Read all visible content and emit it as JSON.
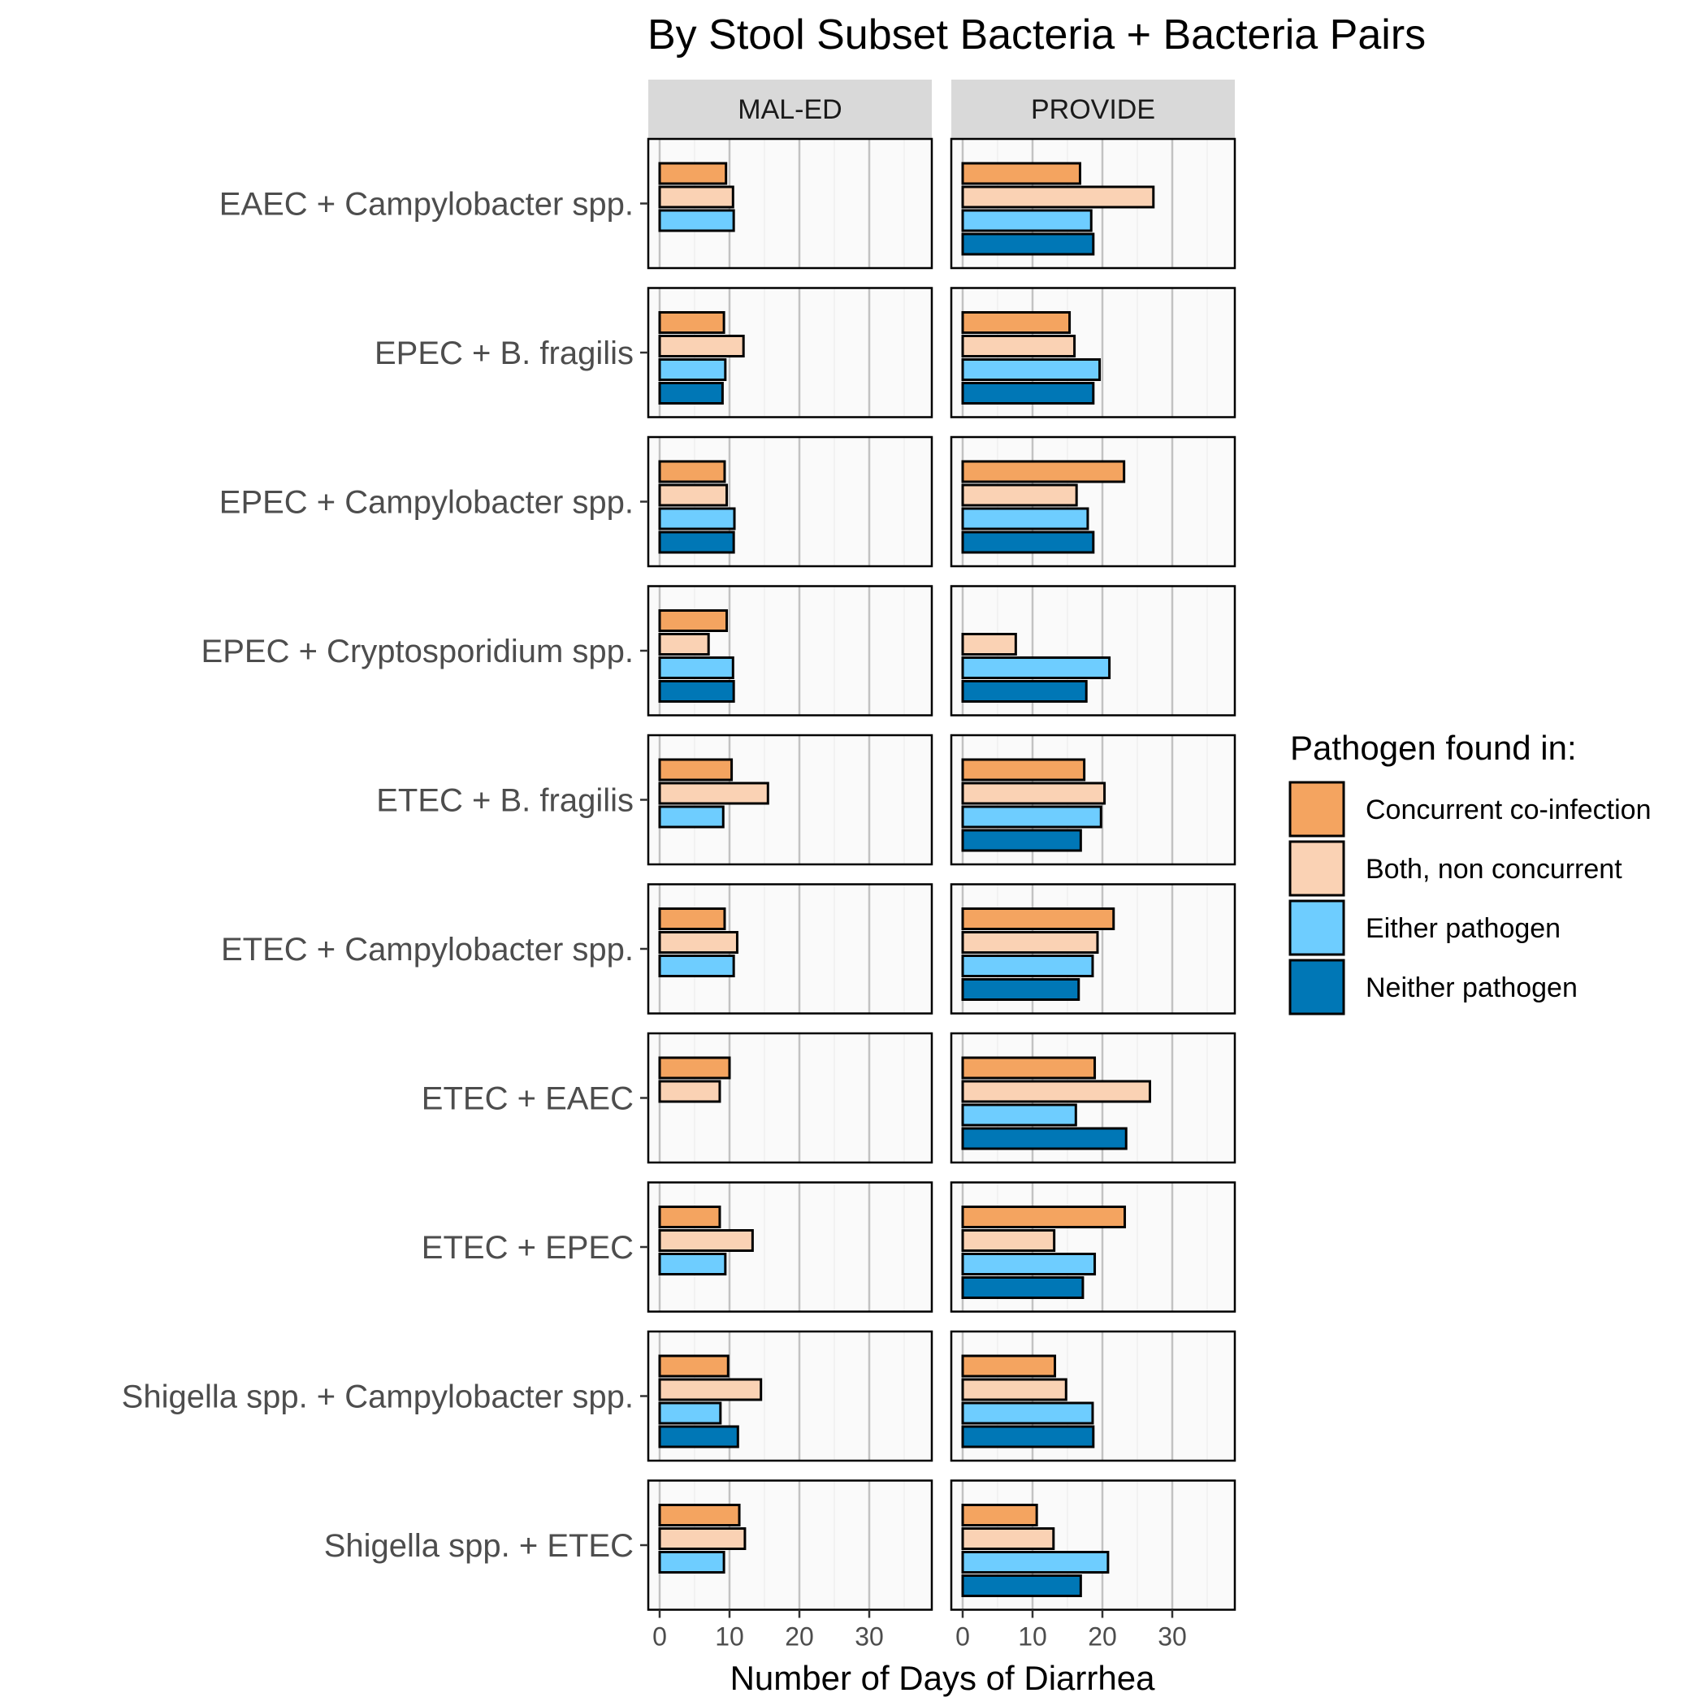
{
  "chart_data": {
    "type": "bar",
    "orientation": "horizontal",
    "title": "By Stool Subset Bacteria + Bacteria Pairs",
    "xlabel": "Number of Days of Diarrhea",
    "ylabel": "",
    "xlim": [
      0,
      38
    ],
    "x_ticks": [
      0,
      10,
      20,
      30
    ],
    "grid": true,
    "panels": [
      "MAL-ED",
      "PROVIDE"
    ],
    "categories": [
      "EAEC + Campylobacter spp.",
      "EPEC + B. fragilis",
      "EPEC + Campylobacter spp.",
      "EPEC + Cryptosporidium spp.",
      "ETEC + B. fragilis",
      "ETEC + Campylobacter spp.",
      "ETEC + EAEC",
      "ETEC + EPEC",
      "Shigella spp. + Campylobacter spp.",
      "Shigella spp. + ETEC"
    ],
    "legend": {
      "title": "Pathogen found in:",
      "position": "right"
    },
    "series": [
      {
        "name": "Concurrent co-infection",
        "color": "#F4A460",
        "values": {
          "MAL-ED": [
            9.5,
            9.2,
            9.3,
            9.6,
            10.3,
            9.3,
            10.0,
            8.6,
            9.8,
            11.4
          ],
          "PROVIDE": [
            16.8,
            15.3,
            23.1,
            null,
            17.4,
            21.6,
            18.9,
            23.2,
            13.2,
            10.6
          ]
        }
      },
      {
        "name": "Both, non concurrent",
        "color": "#FAD2B4",
        "values": {
          "MAL-ED": [
            10.5,
            12.0,
            9.6,
            7.0,
            15.5,
            11.1,
            8.6,
            13.3,
            14.5,
            12.2
          ],
          "PROVIDE": [
            27.3,
            16.0,
            16.3,
            7.6,
            20.3,
            19.3,
            26.8,
            13.1,
            14.8,
            13.0
          ]
        }
      },
      {
        "name": "Either pathogen",
        "color": "#6ECDFF",
        "values": {
          "MAL-ED": [
            10.6,
            9.4,
            10.7,
            10.5,
            9.1,
            10.6,
            0,
            9.4,
            8.7,
            9.2
          ],
          "PROVIDE": [
            18.4,
            19.6,
            17.9,
            21.0,
            19.8,
            18.6,
            16.2,
            18.9,
            18.6,
            20.8
          ]
        }
      },
      {
        "name": "Neither pathogen",
        "color": "#0077B6",
        "values": {
          "MAL-ED": [
            null,
            9.0,
            10.6,
            10.6,
            null,
            null,
            null,
            null,
            11.2,
            0
          ],
          "PROVIDE": [
            18.7,
            18.7,
            18.7,
            17.7,
            16.9,
            16.6,
            23.4,
            17.2,
            18.7,
            16.9
          ]
        }
      }
    ]
  }
}
